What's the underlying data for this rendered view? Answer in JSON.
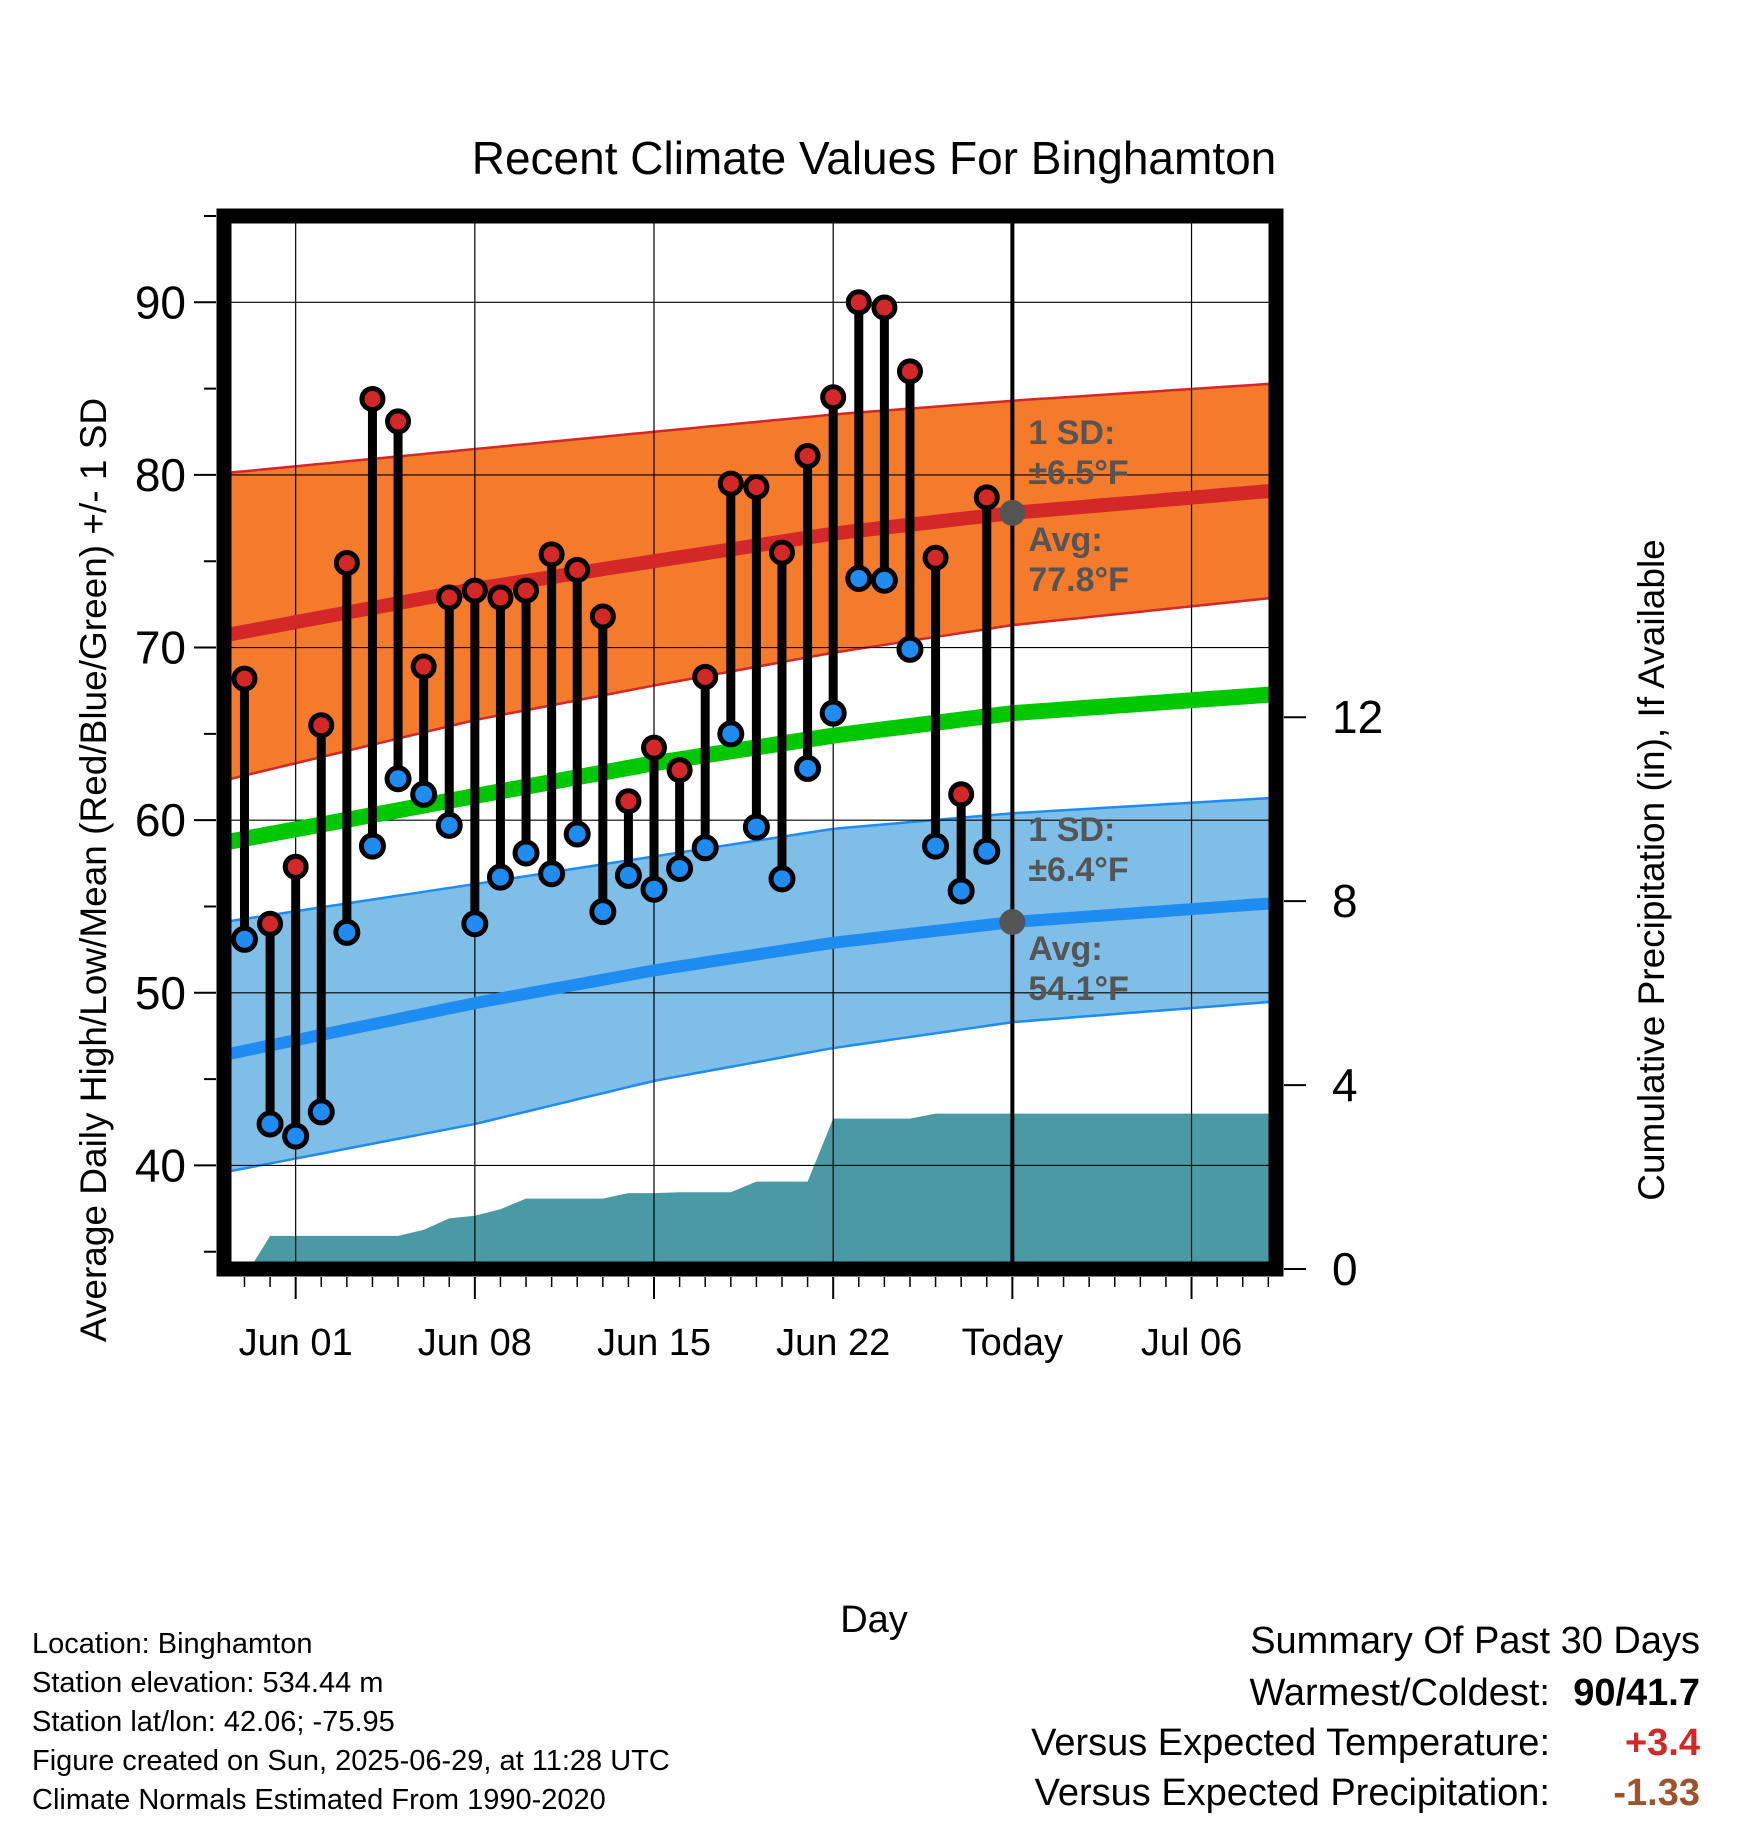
{
  "chart_data": {
    "type": "line",
    "title": "Recent Climate Values For Binghamton",
    "xlabel": "Day",
    "ylabel_left": "Average Daily High/Low/Mean (Red/Blue/Green) +/- 1 SD",
    "ylabel_right": "Cumulative Precipitation (in), If Available",
    "ylim": [
      34.0,
      95.0
    ],
    "ylim_right": [
      0,
      22.9
    ],
    "yticks_left": [
      40,
      50,
      60,
      70,
      80,
      90
    ],
    "yticks_right": [
      0,
      4,
      8,
      12
    ],
    "xlim": [
      -2.8,
      38.3
    ],
    "xticks": [
      {
        "x": 0,
        "label": "Jun 01"
      },
      {
        "x": 7,
        "label": "Jun 08"
      },
      {
        "x": 14,
        "label": "Jun 15"
      },
      {
        "x": 21,
        "label": "Jun 22"
      },
      {
        "x": 28,
        "label": "Today"
      },
      {
        "x": 35,
        "label": "Jul 06"
      }
    ],
    "grid": true,
    "today_x": 28,
    "days_from_jun01": [
      -2,
      -1,
      0,
      1,
      2,
      3,
      4,
      5,
      6,
      7,
      8,
      9,
      10,
      11,
      12,
      13,
      14,
      15,
      16,
      17,
      18,
      19,
      20,
      21,
      22,
      23,
      24,
      25,
      26,
      27
    ],
    "daily_high": [
      68.2,
      54.0,
      57.3,
      65.5,
      74.9,
      84.4,
      83.1,
      68.9,
      72.9,
      73.3,
      72.9,
      73.3,
      75.4,
      74.5,
      71.8,
      61.1,
      64.2,
      62.9,
      68.3,
      79.5,
      79.3,
      75.5,
      81.1,
      84.5,
      90.0,
      89.7,
      86.0,
      75.2,
      61.5,
      78.7
    ],
    "daily_low": [
      53.1,
      42.4,
      41.7,
      43.1,
      53.5,
      58.5,
      62.4,
      61.5,
      59.7,
      54.0,
      56.7,
      58.1,
      56.9,
      59.2,
      54.7,
      56.8,
      56.0,
      57.2,
      58.4,
      65.0,
      59.6,
      56.6,
      63.0,
      66.2,
      74.0,
      73.9,
      69.9,
      58.5,
      55.9,
      58.2
    ],
    "normal_high": {
      "x": [
        -2.8,
        7,
        14,
        21,
        28,
        38.3
      ],
      "values": [
        70.7,
        73.4,
        75.0,
        76.6,
        77.8,
        79.1
      ]
    },
    "normal_high_upper": {
      "x": [
        -2.8,
        7,
        14,
        21,
        28,
        38.3
      ],
      "values": [
        80.1,
        81.5,
        82.5,
        83.5,
        84.3,
        85.3
      ]
    },
    "normal_high_lower": {
      "x": [
        -2.8,
        7,
        14,
        21,
        28,
        38.3
      ],
      "values": [
        62.3,
        65.8,
        67.8,
        69.7,
        71.3,
        72.9
      ]
    },
    "normal_mean": {
      "x": [
        -2.8,
        7,
        14,
        21,
        28,
        38.3
      ],
      "values": [
        58.7,
        61.4,
        63.3,
        64.9,
        66.2,
        67.3
      ]
    },
    "normal_low": {
      "x": [
        -2.8,
        7,
        14,
        21,
        28,
        38.3
      ],
      "values": [
        46.4,
        49.4,
        51.3,
        52.9,
        54.1,
        55.2
      ]
    },
    "normal_low_upper": {
      "x": [
        -2.8,
        7,
        14,
        21,
        28,
        38.3
      ],
      "values": [
        54.1,
        56.3,
        57.9,
        59.5,
        60.4,
        61.3
      ]
    },
    "normal_low_lower": {
      "x": [
        -2.8,
        7,
        14,
        21,
        28,
        38.3
      ],
      "values": [
        39.6,
        42.4,
        44.9,
        46.8,
        48.3,
        49.5
      ]
    },
    "cumulative_precip": {
      "x": [
        -1.8,
        -1,
        0,
        1,
        2,
        3,
        4,
        5,
        6,
        7,
        8,
        9,
        10,
        11,
        12,
        13,
        14,
        15,
        16,
        17,
        18,
        19,
        20,
        21,
        22,
        23,
        24,
        25,
        26,
        27,
        28,
        38.3
      ],
      "values": [
        0.0,
        0.72,
        0.72,
        0.72,
        0.72,
        0.72,
        0.72,
        0.85,
        1.1,
        1.16,
        1.3,
        1.53,
        1.53,
        1.53,
        1.53,
        1.65,
        1.65,
        1.67,
        1.67,
        1.67,
        1.9,
        1.9,
        1.9,
        3.27,
        3.27,
        3.27,
        3.27,
        3.38,
        3.38,
        3.38,
        3.38,
        3.38
      ]
    },
    "annotations": {
      "high_sd": [
        "1 SD:",
        "±6.5°F"
      ],
      "high_avg": [
        "Avg:",
        "77.8°F"
      ],
      "low_sd": [
        "1 SD:",
        "±6.4°F"
      ],
      "low_avg": [
        "Avg:",
        "54.1°F"
      ],
      "period": [
        "30",
        "Days"
      ]
    },
    "colors": {
      "high_band": "#f47a2c",
      "high_line": "#d42828",
      "mean_line": "#00c800",
      "low_band": "#7fbee6",
      "low_line": "#1e8cf0",
      "precip": "#4a9aa5",
      "high_marker": "#d42828",
      "low_marker": "#1e8cf0",
      "annotation": "#555555"
    }
  },
  "footer": {
    "location": "Location: Binghamton",
    "elevation": "Station elevation: 534.44 m",
    "latlon": "Station lat/lon: 42.06; -75.95",
    "created": "Figure created on Sun, 2025-06-29, at 11:28 UTC",
    "normals": "Climate Normals Estimated From 1990-2020"
  },
  "summary": {
    "title": "Summary Of Past 30 Days",
    "warmest_coldest_label": "Warmest/Coldest:",
    "warmest_coldest_value": "90/41.7",
    "temp_label": "Versus Expected Temperature:",
    "temp_value": "+3.4",
    "temp_color": "#d42828",
    "precip_label": "Versus Expected Precipitation:",
    "precip_value": "-1.33",
    "precip_color": "#a0522d"
  }
}
